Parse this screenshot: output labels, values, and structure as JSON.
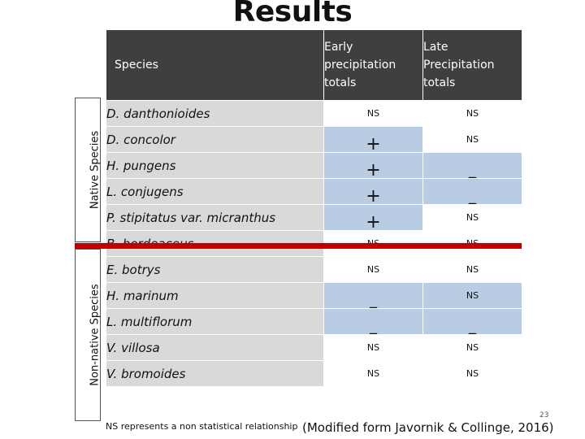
{
  "title": "Results",
  "axis_labels": {
    "native": "Native Species",
    "non_native": "Non-native Species"
  },
  "table": {
    "headers": {
      "species": "Species",
      "early": "Early precipitation totals",
      "late": "Late Precipitation totals"
    },
    "rows": [
      {
        "species": "D. danthonioides",
        "early": "NS",
        "late": "NS",
        "early_highlight": false,
        "late_highlight": false
      },
      {
        "species": "D. concolor",
        "early": "+",
        "late": "NS",
        "early_highlight": true,
        "late_highlight": false
      },
      {
        "species": "H. pungens",
        "early": "+",
        "late": "_",
        "early_highlight": true,
        "late_highlight": true
      },
      {
        "species": "L. conjugens",
        "early": "+",
        "late": "_",
        "early_highlight": true,
        "late_highlight": true
      },
      {
        "species": "P. stipitatus var. micranthus",
        "early": "+",
        "late": "NS",
        "early_highlight": true,
        "late_highlight": false
      },
      {
        "species": "B. hordeaceus",
        "early": "NS",
        "late": "NS",
        "early_highlight": false,
        "late_highlight": false
      },
      {
        "species": "E. botrys",
        "early": "NS",
        "late": "NS",
        "early_highlight": false,
        "late_highlight": false
      },
      {
        "species": "H. marinum",
        "early": "_",
        "late": "NS",
        "early_highlight": true,
        "late_highlight": true
      },
      {
        "species": "L. multiflorum",
        "early": "_",
        "late": "_",
        "early_highlight": true,
        "late_highlight": true
      },
      {
        "species": "V. villosa",
        "early": "NS",
        "late": "NS",
        "early_highlight": false,
        "late_highlight": false
      },
      {
        "species": "V. bromoides",
        "early": "NS",
        "late": "NS",
        "early_highlight": false,
        "late_highlight": false
      }
    ]
  },
  "footnote": "NS represents a non statistical relationship",
  "citation": "(Modified form Javornik & Collinge, 2016)",
  "page_number": "23",
  "colors": {
    "header_bg": "#3f3f3f",
    "species_bg": "#d9d9d9",
    "highlight_bg": "#b8cce4",
    "separator": "#c00000"
  }
}
